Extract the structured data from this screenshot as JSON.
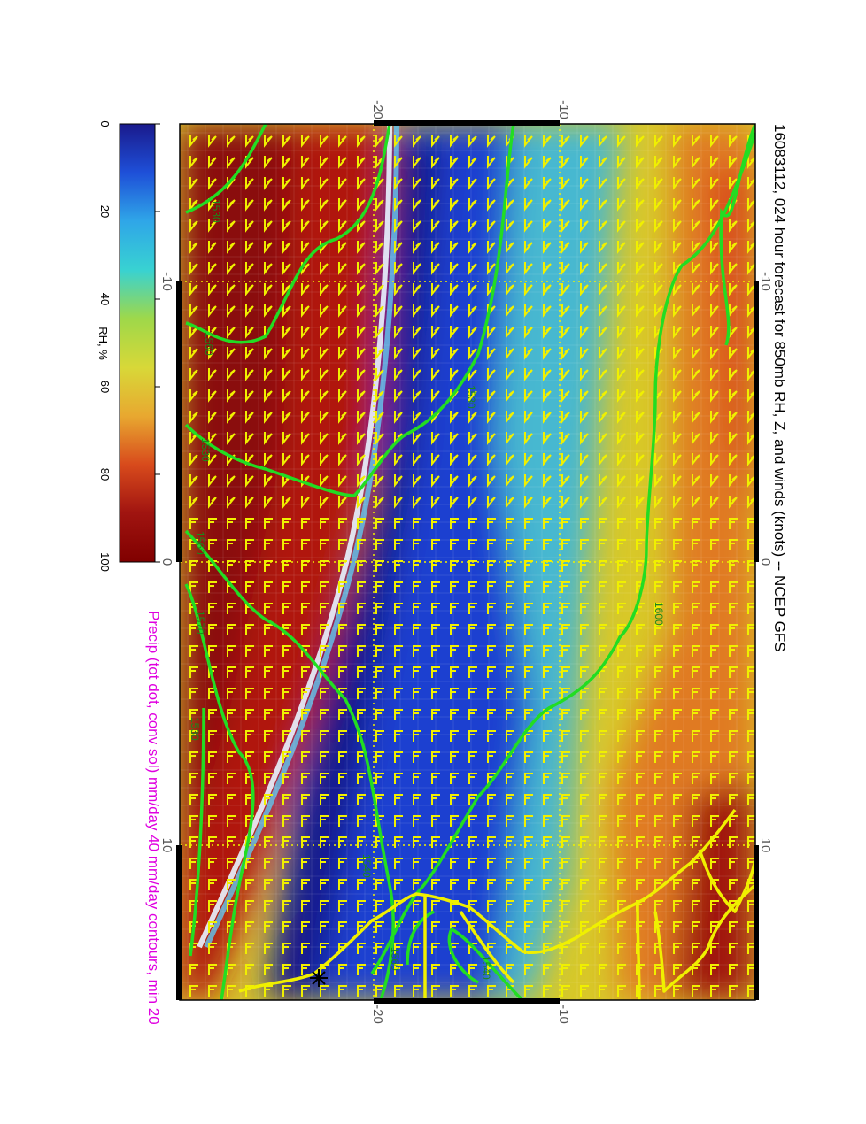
{
  "title": "16083112, 024 hour forecast for 850mb RH, Z, and winds (knots) -- NCEP GFS",
  "subtitle": "Precip (tot dot, conv sol) mm/day 40 mm/day contours, min 20",
  "colorbar": {
    "label": "RH, %",
    "ticks": [
      "0",
      "20",
      "40",
      "60",
      "80",
      "100"
    ],
    "colors": [
      "#1a1a8c",
      "#1e4fd8",
      "#2fa6e8",
      "#38d2d2",
      "#9ed84a",
      "#d8d838",
      "#e8a830",
      "#d84a1c",
      "#a01410",
      "#800000"
    ]
  },
  "axes": {
    "top_ticks": [
      "-20",
      "-10"
    ],
    "bottom_ticks": [
      "-20",
      "-10"
    ],
    "left_ticks": [
      "-10",
      "0",
      "10"
    ],
    "right_ticks": [
      "-10",
      "0",
      "10"
    ]
  },
  "contours": {
    "labels": [
      "1530",
      "1560",
      "1530",
      "1560",
      "1570",
      "1530",
      "1540",
      "1560",
      "1540",
      "1530",
      "1600"
    ]
  },
  "colors": {
    "contour": "#22dd22",
    "wind": "#f0f000",
    "coast": "#f0f000",
    "grid": "#f0f000",
    "subtitle": "#e000e0"
  }
}
